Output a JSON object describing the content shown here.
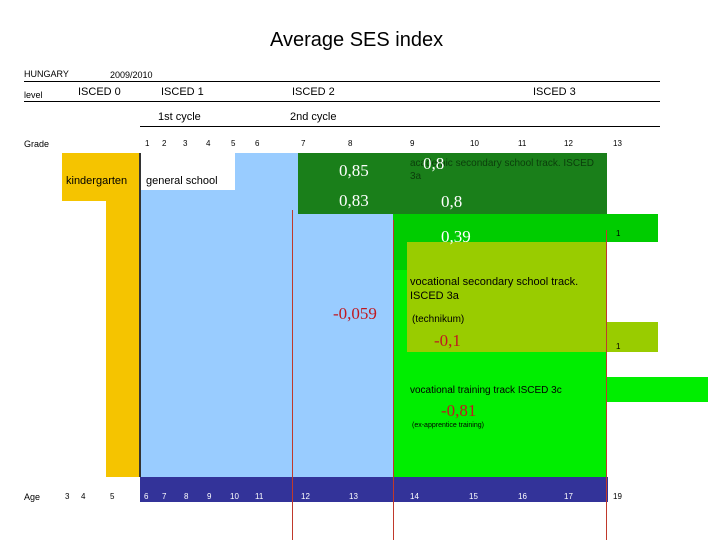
{
  "title": "Average SES index",
  "header": {
    "country": "HUNGARY",
    "year": "2009/2010",
    "level_label": "level",
    "isced0": "ISCED 0",
    "isced1": "ISCED 1",
    "isced2": "ISCED 2",
    "isced3": "ISCED 3",
    "cycle1": "1st cycle",
    "cycle2": "2nd cycle",
    "grade_label": "Grade",
    "age_label": "Age"
  },
  "grades": [
    "1",
    "2",
    "3",
    "4",
    "5",
    "6",
    "7",
    "8",
    "9",
    "10",
    "11",
    "12",
    "13"
  ],
  "ages": [
    "3",
    "4",
    "5",
    "6",
    "7",
    "8",
    "9",
    "10",
    "11",
    "12",
    "13",
    "14",
    "15",
    "16",
    "17",
    "19"
  ],
  "labels": {
    "kindergarten": "kindergarten",
    "general_school": "general school",
    "academic_track": "academic secondary school track. ISCED 3a",
    "vocational_track": "vocational secondary school track. ISCED 3a",
    "technikum": "(technikum)",
    "training_track": "vocational training track ISCED 3c",
    "apprentice": "(ex-apprentice training)",
    "one_a": "1",
    "one_b": "1"
  },
  "values": {
    "gen_upper": "0,85",
    "gen_lower": "0,83",
    "acad_upper": "0,8",
    "acad_lower": "0,8",
    "acad_ext": "0,39",
    "general": "-0,059",
    "vocational": "-0,1",
    "training": "-0,81"
  },
  "colors": {
    "kindergarten": "#f5c400",
    "general_school": "#99ccff",
    "academic": "#1a7f1a",
    "academic_ext": "#00cc00",
    "vocational": "#99cc00",
    "training": "#00ee00",
    "age_bar": "#333399",
    "divider": "#c0392b"
  }
}
